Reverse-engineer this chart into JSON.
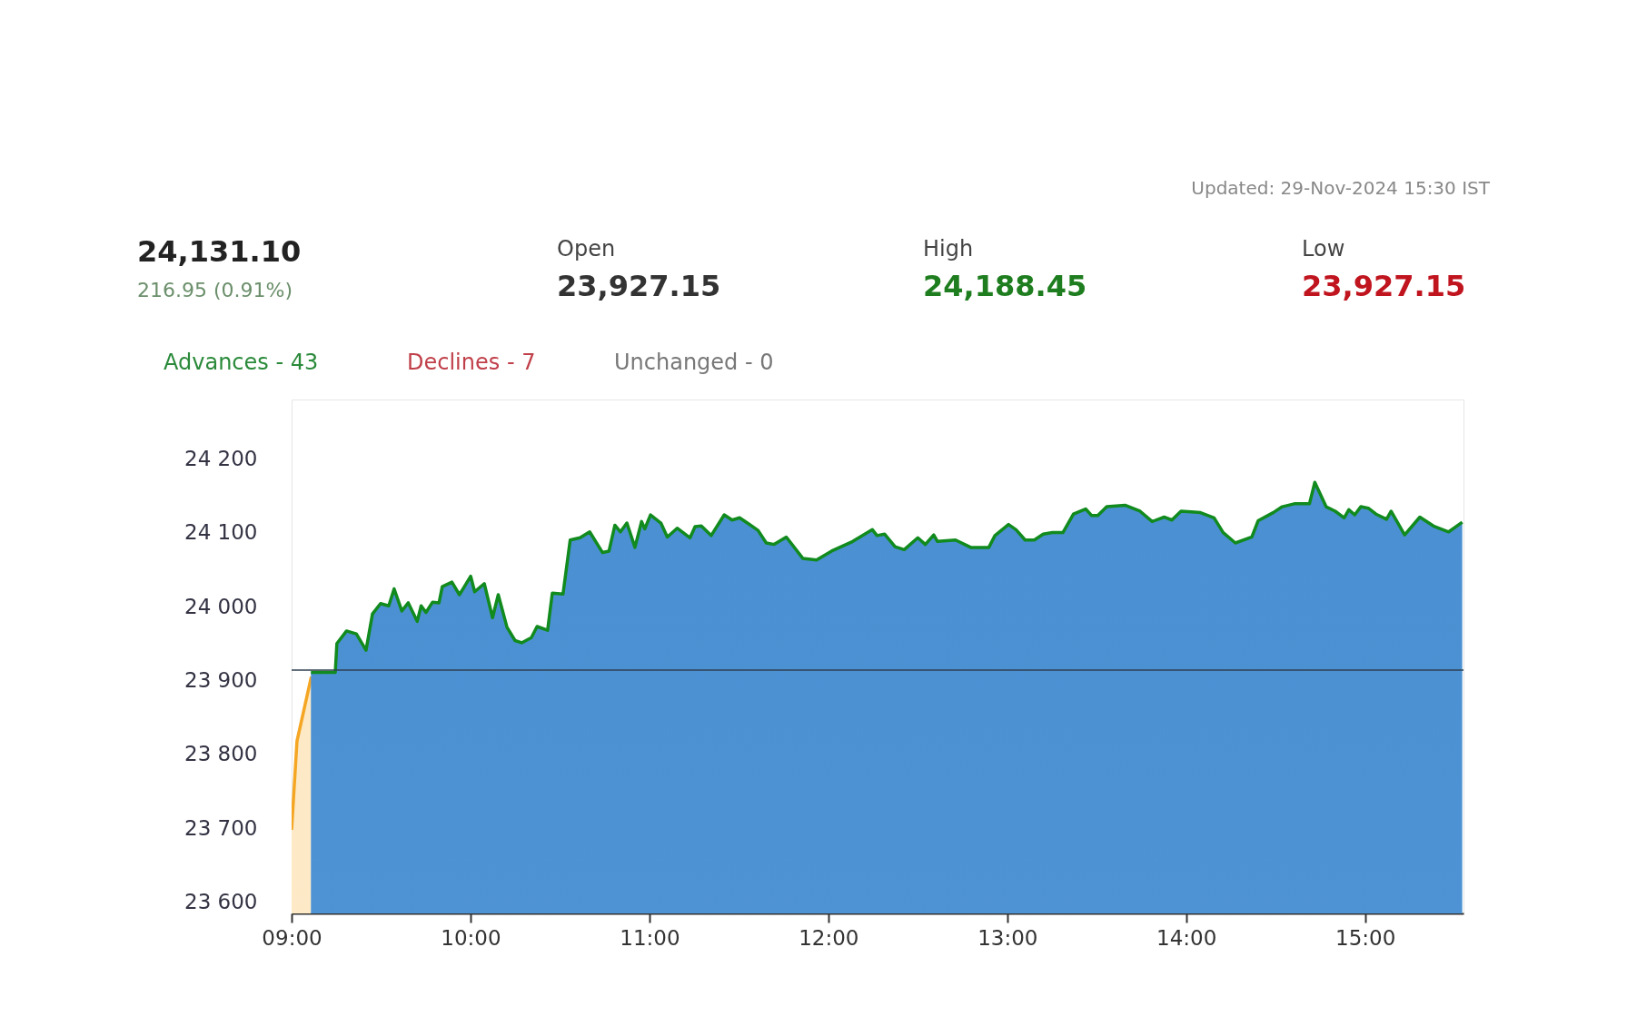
{
  "chart_data": {
    "type": "area",
    "annotations": [
      "Updated: 29-Nov-2024 15:30 IST",
      "24,131.10",
      "216.95 (0.91%)",
      "Open",
      "23,927.15",
      "High",
      "24,188.45",
      "Low",
      "23,927.15",
      "Advances - 43",
      "Declines - 7",
      "Unchanged - 0"
    ],
    "series": [
      {
        "color": "#f5a623",
        "x": [
          9.0,
          9.03,
          9.11
        ],
        "values": [
          23698,
          23818,
          23905
        ]
      },
      {
        "color": "#118a1e",
        "x": [
          9.108,
          9.244,
          9.253,
          9.307,
          9.362,
          9.416,
          9.452,
          9.497,
          9.543,
          9.573,
          9.616,
          9.652,
          9.702,
          9.724,
          9.751,
          9.788,
          9.824,
          9.842,
          9.896,
          9.938,
          10.001,
          10.023,
          10.077,
          10.123,
          10.155,
          10.204,
          10.249,
          10.286,
          10.34,
          10.372,
          10.431,
          10.457,
          10.517,
          10.557,
          10.612,
          10.666,
          10.738,
          10.774,
          10.807,
          10.838,
          10.874,
          10.919,
          10.956,
          10.974,
          11.006,
          11.064,
          11.1,
          11.155,
          11.227,
          11.255,
          11.29,
          11.345,
          11.418,
          11.462,
          11.504,
          11.553,
          11.607,
          11.653,
          11.697,
          11.765,
          11.858,
          11.934,
          12.018,
          12.136,
          12.246,
          12.272,
          12.314,
          12.373,
          12.424,
          12.5,
          12.542,
          12.589,
          12.61,
          12.711,
          12.796,
          12.897,
          12.931,
          13.007,
          13.049,
          13.1,
          13.151,
          13.201,
          13.252,
          13.311,
          13.37,
          13.438,
          13.472,
          13.506,
          13.556,
          13.658,
          13.742,
          13.81,
          13.877,
          13.92,
          13.971,
          14.029,
          14.08,
          14.156,
          14.207,
          14.275,
          14.367,
          14.402,
          14.486,
          14.537,
          14.604,
          14.689,
          14.719,
          14.748,
          14.782,
          14.833,
          14.883,
          14.909,
          14.942,
          14.976,
          15.018,
          15.061,
          15.12,
          15.145,
          15.221,
          15.306,
          15.382,
          15.467,
          15.543
        ],
        "values": [
          23911,
          23911,
          23950,
          23967,
          23963,
          23941,
          23990,
          24004,
          24001,
          24024,
          23994,
          24005,
          23980,
          24001,
          23992,
          24006,
          24005,
          24027,
          24033,
          24016,
          24041,
          24020,
          24031,
          23985,
          24016,
          23972,
          23954,
          23951,
          23958,
          23973,
          23968,
          24018,
          24017,
          24090,
          24093,
          24101,
          24073,
          24075,
          24110,
          24101,
          24113,
          24080,
          24115,
          24105,
          24124,
          24113,
          24094,
          24106,
          24093,
          24108,
          24109,
          24096,
          24124,
          24117,
          24120,
          24112,
          24103,
          24086,
          24084,
          24094,
          24065,
          24063,
          24075,
          24088,
          24104,
          24096,
          24098,
          24081,
          24077,
          24093,
          24084,
          24097,
          24088,
          24090,
          24080,
          24080,
          24096,
          24111,
          24104,
          24090,
          24090,
          24098,
          24100,
          24100,
          24125,
          24132,
          24123,
          24123,
          24135,
          24137,
          24129,
          24115,
          24121,
          24117,
          24129,
          24128,
          24127,
          24120,
          24100,
          24086,
          24094,
          24116,
          24127,
          24135,
          24139,
          24139,
          24168,
          24153,
          24135,
          24129,
          24120,
          24131,
          24124,
          24135,
          24133,
          24125,
          24118,
          24129,
          24097,
          24121,
          24109,
          24101,
          24114
        ]
      }
    ],
    "xlim": [
      9.0,
      15.55
    ],
    "xticks": [
      {
        "value": 9,
        "label": "09:00"
      },
      {
        "value": 10,
        "label": "10:00"
      },
      {
        "value": 11,
        "label": "11:00"
      },
      {
        "value": 12,
        "label": "12:00"
      },
      {
        "value": 13,
        "label": "13:00"
      },
      {
        "value": 14,
        "label": "14:00"
      },
      {
        "value": 15,
        "label": "15:00"
      }
    ],
    "ylim": [
      23585,
      24280
    ],
    "yticks": [
      {
        "value": 23600,
        "label": "23 600"
      },
      {
        "value": 23700,
        "label": "23 700"
      },
      {
        "value": 23800,
        "label": "23 800"
      },
      {
        "value": 23900,
        "label": "23 900"
      },
      {
        "value": 24000,
        "label": "24 000"
      },
      {
        "value": 24100,
        "label": "24 100"
      },
      {
        "value": 24200,
        "label": "24 200"
      }
    ],
    "ref_lines": [
      {
        "axis": "y",
        "value": 23914,
        "color": "#2f4050"
      }
    ],
    "grid": false
  }
}
